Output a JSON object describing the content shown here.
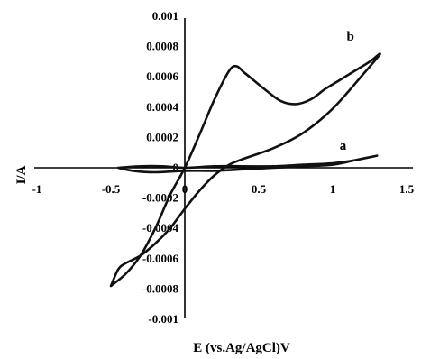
{
  "chart_data": {
    "type": "line",
    "title": "",
    "xlabel": "E (vs.Ag/AgCl)V",
    "ylabel": "I/A",
    "xlim": [
      -1,
      1.5
    ],
    "ylim": [
      -0.001,
      0.001
    ],
    "x_ticks": [
      "-1",
      "-0.5",
      "0",
      "0.5",
      "1",
      "1.5"
    ],
    "y_ticks": [
      "0.001",
      "0.0008",
      "0.0006",
      "0.0004",
      "0.0002",
      "0",
      "-0.0002",
      "-0.0004",
      "-0.0006",
      "-0.0008",
      "-0.001"
    ],
    "grid": false,
    "series": [
      {
        "name": "a",
        "x": [
          -0.45,
          -0.3,
          -0.15,
          0.0,
          0.2,
          0.4,
          0.6,
          0.8,
          1.0,
          1.15,
          1.3,
          1.15,
          1.0,
          0.8,
          0.6,
          0.4,
          0.2,
          0.0,
          -0.2,
          -0.35,
          -0.45
        ],
        "y": [
          0.0,
          1e-05,
          1e-05,
          0.0,
          1e-05,
          1e-05,
          1e-05,
          2e-05,
          3e-05,
          5e-05,
          8e-05,
          5e-05,
          2e-05,
          1e-05,
          0.0,
          -1e-05,
          -2e-05,
          -2e-05,
          -3e-05,
          -2e-05,
          0.0
        ]
      },
      {
        "name": "b",
        "x": [
          -0.5,
          -0.4,
          -0.3,
          -0.2,
          -0.1,
          0.0,
          0.1,
          0.2,
          0.3,
          0.35,
          0.4,
          0.45,
          0.55,
          0.65,
          0.75,
          0.85,
          0.95,
          1.05,
          1.15,
          1.25,
          1.32,
          1.2,
          1.0,
          0.8,
          0.6,
          0.4,
          0.3,
          0.2,
          0.1,
          0.0,
          -0.1,
          -0.2,
          -0.3,
          -0.4,
          -0.45,
          -0.5
        ],
        "y": [
          -0.00078,
          -0.0007,
          -0.00058,
          -0.0004,
          -0.00018,
          0.0,
          0.00022,
          0.00045,
          0.00064,
          0.00067,
          0.00063,
          0.00059,
          0.00051,
          0.00044,
          0.00042,
          0.00045,
          0.00052,
          0.00058,
          0.00064,
          0.0007,
          0.00075,
          0.00061,
          0.00039,
          0.00023,
          0.00013,
          6e-05,
          2e-05,
          -5e-05,
          -0.00015,
          -0.00027,
          -0.0004,
          -0.0005,
          -0.00058,
          -0.00063,
          -0.00067,
          -0.00078
        ]
      }
    ]
  }
}
